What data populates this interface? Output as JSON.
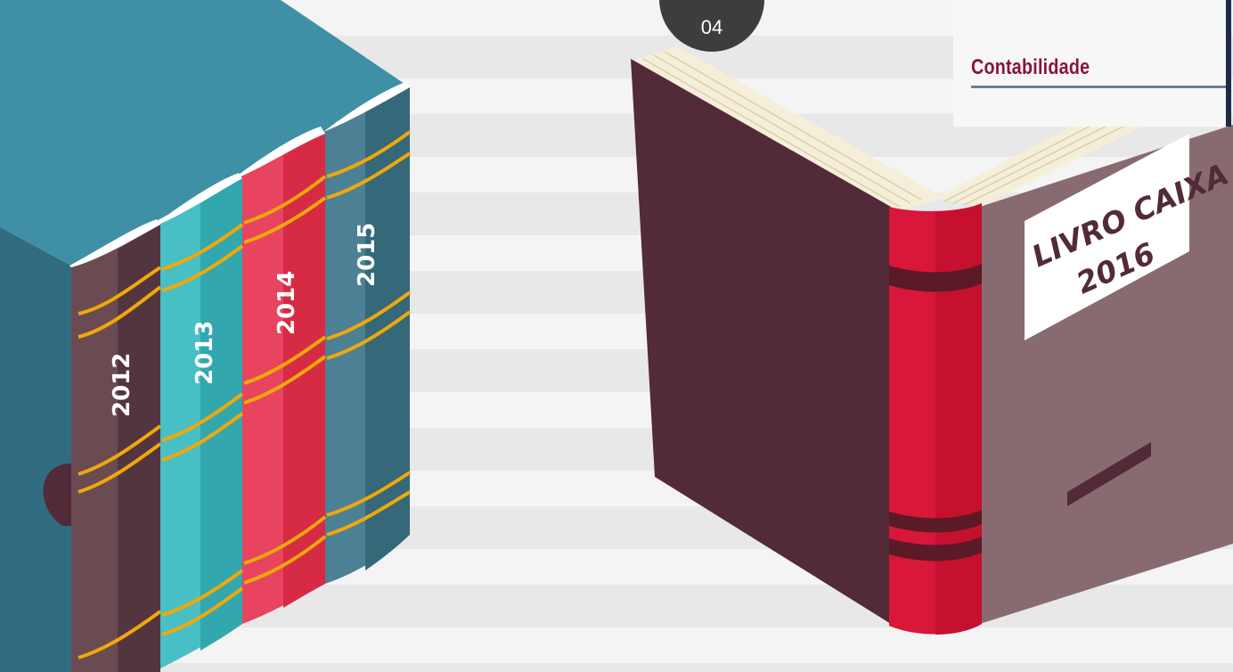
{
  "header": {
    "page_number": "04",
    "category": "Contabilidade"
  },
  "archive_books": [
    {
      "year": "2012",
      "color": "#6b4b52"
    },
    {
      "year": "2013",
      "color": "#47bfc5"
    },
    {
      "year": "2014",
      "color": "#e8435f"
    },
    {
      "year": "2015",
      "color": "#4c8094"
    }
  ],
  "open_book": {
    "label_line1": "LIVRO CAIXA",
    "label_line2": "2016",
    "cover_color": "#532a37",
    "spine_color": "#d8173a",
    "back_color": "#886b70"
  },
  "colors": {
    "band_gold": "#f0a80a",
    "box_teal": "#3f8fa5",
    "badge": "#3d3d3d",
    "category_text": "#8b1537"
  }
}
